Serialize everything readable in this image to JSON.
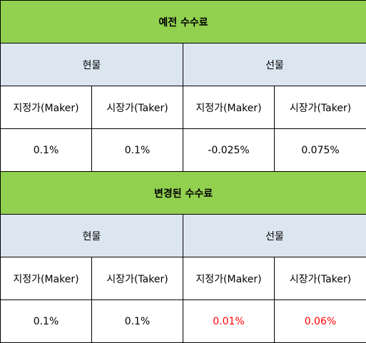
{
  "tables": [
    {
      "title": "예전 수수료",
      "markets": [
        "현물",
        "선물"
      ],
      "columns": [
        "지정가(Maker)",
        "시장가(Taker)",
        "지정가(Maker)",
        "시장가(Taker)"
      ],
      "values": [
        "0.1%",
        "0.1%",
        "-0.025%",
        "0.075%"
      ]
    },
    {
      "title": "변경된 수수료",
      "markets": [
        "현물",
        "선물"
      ],
      "columns": [
        "지정가(Maker)",
        "시장가(Taker)",
        "지정가(Maker)",
        "시장가(Taker)"
      ],
      "values": [
        "0.1%",
        "0.1%",
        "0.01%",
        "0.06%"
      ]
    }
  ],
  "colors": {
    "title_bg": "#92d050",
    "section_bg": "#dce6f1",
    "changed_value": "#ff0000",
    "border": "#000000"
  }
}
